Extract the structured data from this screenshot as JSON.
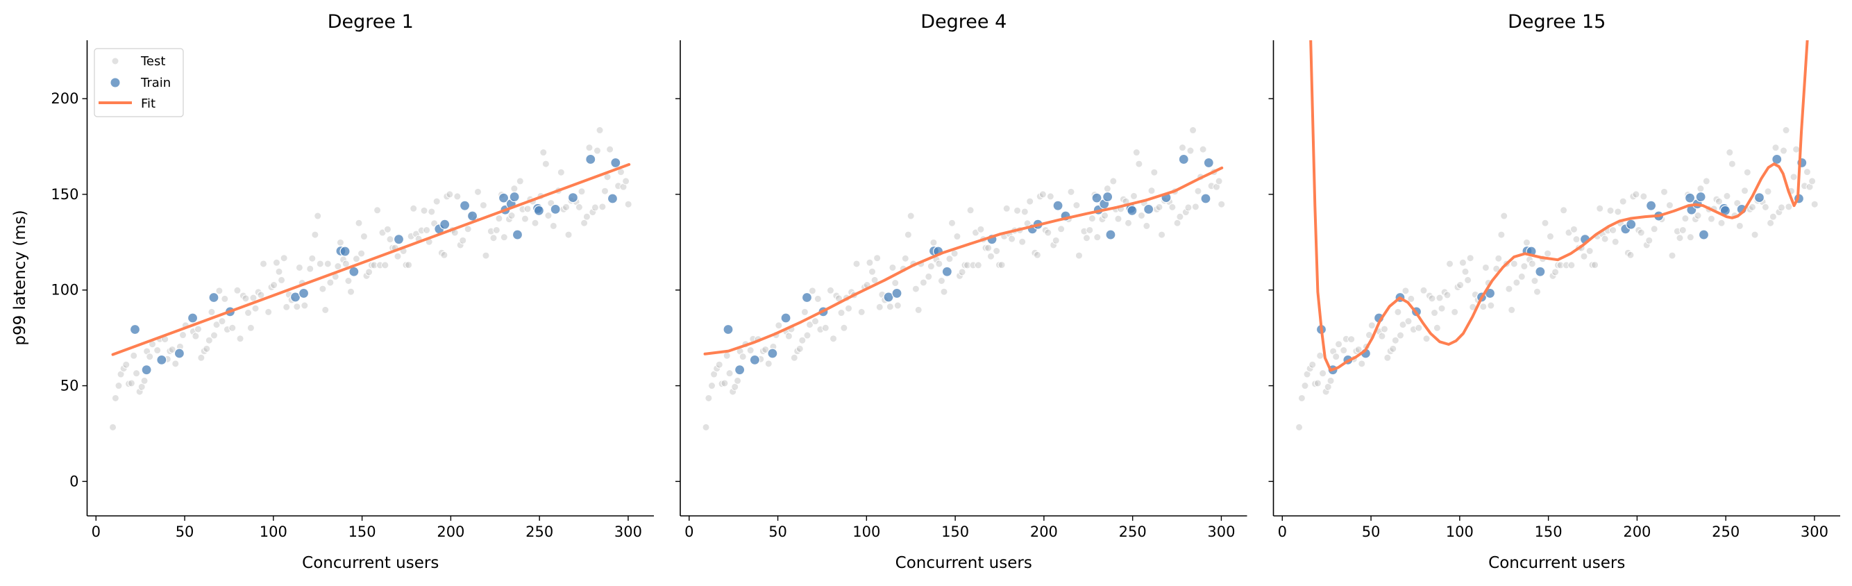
{
  "chart_data": {
    "type": "scatter",
    "ylabel": "p99 latency (ms)",
    "xlabel": "Concurrent users",
    "xlim": [
      -5,
      314.5
    ],
    "ylim": [
      -18,
      230.5
    ],
    "xticks": [
      0,
      50,
      100,
      150,
      200,
      250,
      300
    ],
    "yticks": [
      0,
      50,
      100,
      150,
      200
    ],
    "grid": false,
    "shared_y": true,
    "legend": {
      "placement": "top-left",
      "entries": [
        "Test",
        "Train",
        "Fit"
      ]
    },
    "colors": {
      "test": "#bdbdbd",
      "train": "#4a80b8",
      "fit": "#ff7f50"
    },
    "train": [
      [
        22,
        79.4
      ],
      [
        28.5,
        58.3
      ],
      [
        37,
        63.5
      ],
      [
        47,
        66.9
      ],
      [
        54.5,
        85.4
      ],
      [
        66.4,
        96.1
      ],
      [
        75.6,
        88.7
      ],
      [
        112.4,
        96.3
      ],
      [
        117.1,
        98.3
      ],
      [
        138,
        120.4
      ],
      [
        140.4,
        120.2
      ],
      [
        145.4,
        109.6
      ],
      [
        170.7,
        126.5
      ],
      [
        193.5,
        131.9
      ],
      [
        196.6,
        134.3
      ],
      [
        207.9,
        144.1
      ],
      [
        212.2,
        138.7
      ],
      [
        229.8,
        148.1
      ],
      [
        230.7,
        141.9
      ],
      [
        234,
        145
      ],
      [
        235.9,
        148.7
      ],
      [
        237.6,
        128.9
      ],
      [
        249,
        142.6
      ],
      [
        249.7,
        141.5
      ],
      [
        259,
        142.2
      ],
      [
        268.9,
        148.3
      ],
      [
        278.8,
        168.3
      ],
      [
        291.2,
        147.8
      ],
      [
        292.9,
        166.5
      ]
    ],
    "test": [
      [
        9.5,
        28.3
      ],
      [
        11,
        43.5
      ],
      [
        12.8,
        50
      ],
      [
        14,
        56
      ],
      [
        15.6,
        59
      ],
      [
        17,
        61
      ],
      [
        18.5,
        51
      ],
      [
        20,
        51.3
      ],
      [
        21.3,
        65.7
      ],
      [
        22.8,
        56.5
      ],
      [
        24.6,
        46.9
      ],
      [
        25.8,
        49.4
      ],
      [
        27.3,
        52.6
      ],
      [
        28.7,
        68
      ],
      [
        30.3,
        65.2
      ],
      [
        31.8,
        71.7
      ],
      [
        34.6,
        68.5
      ],
      [
        36,
        74.4
      ],
      [
        38.9,
        74.3
      ],
      [
        40.3,
        63.9
      ],
      [
        41.7,
        68.1
      ],
      [
        43,
        68.9
      ],
      [
        44.8,
        61.5
      ],
      [
        47.4,
        70.4
      ],
      [
        49,
        76.5
      ],
      [
        50.5,
        81.5
      ],
      [
        54.8,
        78.3
      ],
      [
        56.2,
        75.9
      ],
      [
        57.6,
        79.6
      ],
      [
        59.3,
        64.6
      ],
      [
        61,
        68.1
      ],
      [
        62.4,
        69.3
      ],
      [
        63.8,
        73.7
      ],
      [
        65.2,
        88.5
      ],
      [
        66.6,
        76.3
      ],
      [
        68,
        81.9
      ],
      [
        69.5,
        99.6
      ],
      [
        71.1,
        83.7
      ],
      [
        72.6,
        95.4
      ],
      [
        74,
        79.4
      ],
      [
        76.9,
        80.2
      ],
      [
        79.7,
        99.8
      ],
      [
        81.3,
        74.6
      ],
      [
        83,
        97
      ],
      [
        84.4,
        95.6
      ],
      [
        85.8,
        88.1
      ],
      [
        87.3,
        80.2
      ],
      [
        88.7,
        95.9
      ],
      [
        89.9,
        90.4
      ],
      [
        91.5,
        98.9
      ],
      [
        93,
        97.4
      ],
      [
        94.4,
        113.7
      ],
      [
        97.2,
        88.5
      ],
      [
        98.9,
        101.5
      ],
      [
        100.3,
        102.6
      ],
      [
        101.8,
        114.3
      ],
      [
        103.2,
        109.6
      ],
      [
        104.6,
        105.2
      ],
      [
        106,
        116.7
      ],
      [
        107.4,
        91.1
      ],
      [
        108.8,
        97.6
      ],
      [
        110.3,
        94.8
      ],
      [
        113.3,
        91.3
      ],
      [
        114.7,
        111.7
      ],
      [
        116.2,
        103.7
      ],
      [
        117.6,
        91.9
      ],
      [
        120.7,
        111.1
      ],
      [
        121.9,
        116.5
      ],
      [
        123.5,
        128.9
      ],
      [
        125,
        138.7
      ],
      [
        126.4,
        113.7
      ],
      [
        127.8,
        100.6
      ],
      [
        129.3,
        89.6
      ],
      [
        130.7,
        113.7
      ],
      [
        132.1,
        103.9
      ],
      [
        135,
        107
      ],
      [
        136.4,
        112.4
      ],
      [
        137.8,
        124.8
      ],
      [
        139.4,
        115.9
      ],
      [
        140.9,
        113.7
      ],
      [
        142.3,
        104.8
      ],
      [
        143.7,
        99.1
      ],
      [
        146.8,
        116.3
      ],
      [
        148.2,
        135
      ],
      [
        149.6,
        119.1
      ],
      [
        151.1,
        128
      ],
      [
        152.5,
        107.4
      ],
      [
        153.9,
        109.4
      ],
      [
        155.4,
        113
      ],
      [
        156.8,
        113
      ],
      [
        158.6,
        141.7
      ],
      [
        160.1,
        113
      ],
      [
        161.5,
        130
      ],
      [
        163,
        113
      ],
      [
        164.4,
        131.7
      ],
      [
        165.8,
        126.5
      ],
      [
        167.2,
        122
      ],
      [
        168.6,
        122
      ],
      [
        170.1,
        117.6
      ],
      [
        173.3,
        120.4
      ],
      [
        174.8,
        113.1
      ],
      [
        176.2,
        113.1
      ],
      [
        177.6,
        128.1
      ],
      [
        179,
        142.6
      ],
      [
        180.5,
        129.3
      ],
      [
        181.9,
        126.7
      ],
      [
        183.5,
        131.1
      ],
      [
        185,
        141.5
      ],
      [
        186.4,
        131.3
      ],
      [
        187.8,
        125.2
      ],
      [
        189.2,
        140.9
      ],
      [
        190.7,
        134.8
      ],
      [
        192.1,
        146.3
      ],
      [
        194.9,
        119.4
      ],
      [
        196.3,
        118.3
      ],
      [
        197.8,
        148.9
      ],
      [
        199.4,
        150
      ],
      [
        200.9,
        131.3
      ],
      [
        202.3,
        130
      ],
      [
        203.7,
        148.9
      ],
      [
        205.4,
        123.5
      ],
      [
        206.8,
        125.9
      ],
      [
        209.7,
        131.9
      ],
      [
        211.1,
        138.9
      ],
      [
        213.9,
        137
      ],
      [
        215.3,
        151.3
      ],
      [
        218.4,
        144.3
      ],
      [
        219.8,
        118
      ],
      [
        222.7,
        130.7
      ],
      [
        224.1,
        127.2
      ],
      [
        225.8,
        131.3
      ],
      [
        227.2,
        137.4
      ],
      [
        228.6,
        149.8
      ],
      [
        230.1,
        127.6
      ],
      [
        232.9,
        137
      ],
      [
        234.3,
        138.9
      ],
      [
        235.8,
        153
      ],
      [
        239.1,
        156.9
      ],
      [
        240.5,
        142.2
      ],
      [
        241.9,
        137.2
      ],
      [
        243.3,
        142.4
      ],
      [
        244.8,
        147.4
      ],
      [
        246.2,
        146.3
      ],
      [
        247.6,
        135
      ],
      [
        250.7,
        149.1
      ],
      [
        252.2,
        171.9
      ],
      [
        253.6,
        165.9
      ],
      [
        255,
        138.9
      ],
      [
        256.5,
        145.4
      ],
      [
        257.9,
        133.5
      ],
      [
        260.7,
        151.9
      ],
      [
        262.2,
        161.5
      ],
      [
        263.6,
        142.2
      ],
      [
        265,
        143.3
      ],
      [
        266.4,
        128.9
      ],
      [
        267.9,
        146.7
      ],
      [
        270.7,
        146.1
      ],
      [
        272.4,
        143.3
      ],
      [
        273.8,
        151.5
      ],
      [
        275.2,
        135
      ],
      [
        276.7,
        138.3
      ],
      [
        278.1,
        174.4
      ],
      [
        280,
        140.7
      ],
      [
        281.4,
        143.1
      ],
      [
        282.6,
        172.8
      ],
      [
        284,
        183.5
      ],
      [
        285.5,
        143.5
      ],
      [
        286.9,
        151.7
      ],
      [
        288.3,
        159.1
      ],
      [
        289.7,
        173.5
      ],
      [
        294.4,
        154.4
      ],
      [
        295.9,
        161.7
      ],
      [
        297.3,
        153.9
      ],
      [
        298.7,
        156.9
      ],
      [
        300.1,
        144.8
      ]
    ],
    "panels": [
      {
        "title": "Degree 1",
        "fit": [
          [
            9.5,
            66.3
          ],
          [
            300.5,
            165.6
          ]
        ]
      },
      {
        "title": "Degree 4",
        "fit": [
          [
            8.9,
            66.6
          ],
          [
            22.2,
            68.1
          ],
          [
            36.5,
            72.6
          ],
          [
            48.8,
            77.2
          ],
          [
            63.1,
            83.3
          ],
          [
            77.4,
            89.9
          ],
          [
            93.8,
            97.8
          ],
          [
            110.1,
            105.1
          ],
          [
            126.5,
            113
          ],
          [
            142.8,
            119.4
          ],
          [
            159.2,
            124.4
          ],
          [
            175.6,
            129.3
          ],
          [
            191.9,
            132.9
          ],
          [
            208.3,
            136.6
          ],
          [
            224.6,
            140
          ],
          [
            241,
            143.2
          ],
          [
            257.4,
            146.9
          ],
          [
            273.7,
            151.7
          ],
          [
            288,
            158.4
          ],
          [
            300.3,
            163.8
          ]
        ]
      },
      {
        "title": "Degree 15",
        "fit": [
          [
            15.6,
            260
          ],
          [
            16,
            231
          ],
          [
            17,
            195
          ],
          [
            18.4,
            144
          ],
          [
            20,
            99
          ],
          [
            22.1,
            79.4
          ],
          [
            24.1,
            64.5
          ],
          [
            27.2,
            58.1
          ],
          [
            31.5,
            59.5
          ],
          [
            36.4,
            62.6
          ],
          [
            41.5,
            65
          ],
          [
            46.7,
            68.4
          ],
          [
            50.8,
            75
          ],
          [
            54.9,
            83.7
          ],
          [
            60.5,
            91.5
          ],
          [
            66.2,
            95.9
          ],
          [
            70.8,
            93.5
          ],
          [
            75.4,
            88.2
          ],
          [
            79.5,
            82.5
          ],
          [
            83.6,
            77.3
          ],
          [
            88.7,
            73
          ],
          [
            93.8,
            71.6
          ],
          [
            98,
            73.5
          ],
          [
            102,
            77.3
          ],
          [
            107.2,
            86
          ],
          [
            112.3,
            95.9
          ],
          [
            118.4,
            105
          ],
          [
            124.5,
            112
          ],
          [
            130.6,
            117.3
          ],
          [
            136.8,
            119
          ],
          [
            146,
            117
          ],
          [
            155.3,
            115.8
          ],
          [
            162.5,
            119
          ],
          [
            169.6,
            123.5
          ],
          [
            176.8,
            129
          ],
          [
            183.9,
            133.2
          ],
          [
            190,
            136
          ],
          [
            196.3,
            137.4
          ],
          [
            204.5,
            138.3
          ],
          [
            212.6,
            138.9
          ],
          [
            220.8,
            141.3
          ],
          [
            229,
            144.1
          ],
          [
            233,
            144.6
          ],
          [
            237.2,
            144.1
          ],
          [
            245.4,
            140.5
          ],
          [
            250.5,
            138.3
          ],
          [
            253.6,
            137.7
          ],
          [
            256.7,
            138.6
          ],
          [
            259.8,
            140.9
          ],
          [
            265,
            149
          ],
          [
            270,
            158.2
          ],
          [
            274,
            164
          ],
          [
            277.2,
            165.9
          ],
          [
            280,
            164.5
          ],
          [
            282.3,
            160.8
          ],
          [
            285.4,
            151.5
          ],
          [
            288.5,
            144.1
          ],
          [
            290.6,
            147.9
          ],
          [
            292.6,
            182.6
          ],
          [
            294.6,
            210.8
          ],
          [
            296,
            231
          ],
          [
            296.6,
            260
          ]
        ]
      }
    ]
  }
}
